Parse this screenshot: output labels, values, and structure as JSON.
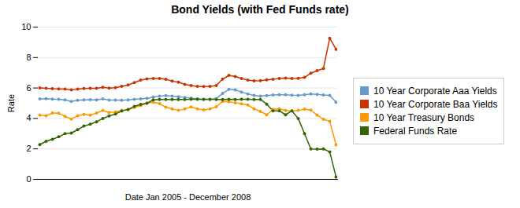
{
  "chart_data": {
    "type": "line",
    "title": "Bond Yields (with Fed Funds rate)",
    "x_label": "Date Jan 2005 - December 2008",
    "y_label": "Rate",
    "categories": [
      null,
      null,
      null,
      null,
      null,
      null,
      null,
      null,
      null,
      null,
      null,
      null,
      null,
      null,
      null,
      null,
      null,
      null,
      null,
      null,
      null,
      null,
      null,
      null,
      null,
      null,
      null,
      null,
      null,
      null,
      null,
      null,
      null,
      null,
      null,
      null,
      null,
      null,
      null,
      null,
      null,
      null,
      null,
      null,
      null,
      null,
      null,
      null
    ],
    "series": [
      {
        "name": "10 Year Corporate Aaa Yields",
        "color": "#6699cc",
        "values": [
          5.28,
          5.3,
          5.27,
          5.26,
          5.22,
          5.12,
          5.19,
          5.22,
          5.23,
          5.22,
          5.28,
          5.2,
          5.2,
          5.19,
          5.22,
          5.26,
          5.28,
          5.32,
          5.4,
          5.47,
          5.5,
          5.46,
          5.43,
          5.38,
          5.33,
          5.28,
          5.24,
          5.24,
          5.3,
          5.64,
          5.91,
          5.88,
          5.74,
          5.61,
          5.52,
          5.47,
          5.5,
          5.54,
          5.55,
          5.56,
          5.53,
          5.52,
          5.56,
          5.6,
          5.58,
          5.54,
          5.52,
          5.06
        ]
      },
      {
        "name": "10 Year Corporate Baa Yields",
        "color": "#cc3300",
        "values": [
          6.01,
          5.98,
          5.95,
          5.94,
          5.93,
          5.87,
          5.93,
          5.97,
          5.98,
          5.98,
          6.04,
          5.99,
          6.02,
          6.11,
          6.2,
          6.35,
          6.52,
          6.6,
          6.62,
          6.62,
          6.57,
          6.45,
          6.38,
          6.24,
          6.16,
          6.11,
          6.09,
          6.11,
          6.16,
          6.58,
          6.83,
          6.75,
          6.62,
          6.52,
          6.47,
          6.48,
          6.53,
          6.57,
          6.63,
          6.65,
          6.63,
          6.64,
          6.7,
          6.97,
          7.14,
          7.28,
          9.27,
          8.55
        ]
      },
      {
        "name": "10 Year Treasury Bonds",
        "color": "#ff9900",
        "values": [
          4.22,
          4.17,
          4.36,
          4.34,
          4.14,
          3.96,
          4.18,
          4.26,
          4.21,
          4.35,
          4.52,
          4.39,
          4.42,
          4.53,
          4.57,
          4.72,
          4.84,
          5.0,
          5.06,
          4.97,
          4.74,
          4.63,
          4.53,
          4.62,
          4.76,
          4.63,
          4.56,
          4.63,
          4.77,
          5.12,
          5.1,
          5.02,
          4.96,
          4.88,
          4.63,
          4.46,
          4.24,
          4.6,
          4.63,
          4.52,
          4.49,
          4.53,
          4.61,
          4.55,
          4.22,
          3.94,
          3.82,
          2.27
        ]
      },
      {
        "name": "Federal Funds Rate",
        "color": "#336600",
        "values": [
          2.28,
          2.5,
          2.63,
          2.79,
          3.0,
          3.04,
          3.26,
          3.5,
          3.62,
          3.78,
          4.0,
          4.16,
          4.29,
          4.49,
          4.59,
          4.79,
          4.92,
          5.0,
          5.22,
          5.25,
          5.25,
          5.25,
          5.25,
          5.24,
          5.26,
          5.26,
          5.26,
          5.26,
          5.25,
          5.25,
          5.26,
          5.25,
          5.26,
          5.26,
          5.25,
          5.25,
          4.94,
          4.5,
          4.5,
          4.24,
          4.5,
          4.0,
          3.0,
          2.0,
          1.98,
          2.0,
          1.81,
          0.16
        ]
      }
    ],
    "ylim": [
      0,
      10
    ],
    "yticks": [
      0,
      2,
      4,
      6,
      8,
      10
    ],
    "grid": true,
    "legend": "right",
    "marker": "dot",
    "tick_labels": "y"
  }
}
